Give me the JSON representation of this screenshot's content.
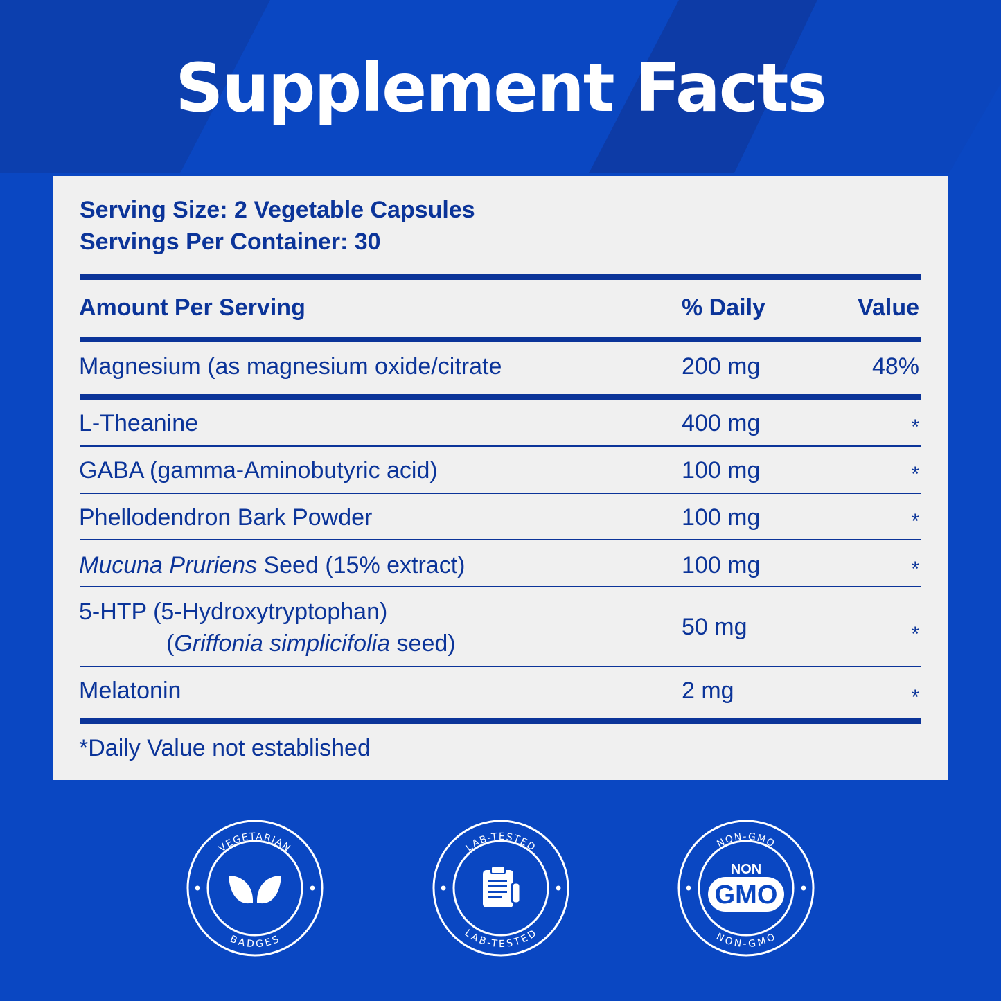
{
  "title": "Supplement Facts",
  "serving": {
    "size": "Serving Size: 2 Vegetable Capsules",
    "per_container": "Servings Per Container: 30"
  },
  "table": {
    "headers": [
      "Amount Per Serving",
      "% Daily",
      "Value"
    ],
    "rows": [
      {
        "name": "Magnesium (as magnesium oxide/citrate",
        "amount": "200 mg",
        "dv": "48%"
      },
      {
        "name": "L-Theanine",
        "amount": "400 mg",
        "dv": "*"
      },
      {
        "name": "GABA (gamma-Aminobutyric acid)",
        "amount": "100 mg",
        "dv": "*"
      },
      {
        "name": "Phellodendron Bark Powder",
        "amount": "100 mg",
        "dv": "*"
      },
      {
        "name_italic": "Mucuna Pruriens",
        "name_rest": " Seed (15% extract)",
        "amount": "100 mg",
        "dv": "*"
      },
      {
        "name": "5-HTP (5-Hydroxytryptophan)",
        "name_line2_open": "(",
        "name_line2_italic": "Griffonia simplicifolia",
        "name_line2_rest": " seed)",
        "amount": "50 mg",
        "dv": "*"
      },
      {
        "name": "Melatonin",
        "amount": "2 mg",
        "dv": "*"
      }
    ],
    "footnote": "*Daily Value not established"
  },
  "badges": [
    {
      "top_text": "VEGETARIAN",
      "bottom_text": "BADGES",
      "icon": "leaf-icon"
    },
    {
      "top_text": "LAB-TESTED",
      "bottom_text": "LAB-TESTED",
      "icon": "clipboard-icon"
    },
    {
      "top_text": "NON-GMO",
      "bottom_text": "NON-GMO",
      "center_small": "NON",
      "center_big": "GMO",
      "icon": "non-gmo-icon"
    }
  ],
  "colors": {
    "background": "#0a47c2",
    "panel": "#f0f0f0",
    "text": "#0b3499",
    "badge": "#ffffff"
  }
}
